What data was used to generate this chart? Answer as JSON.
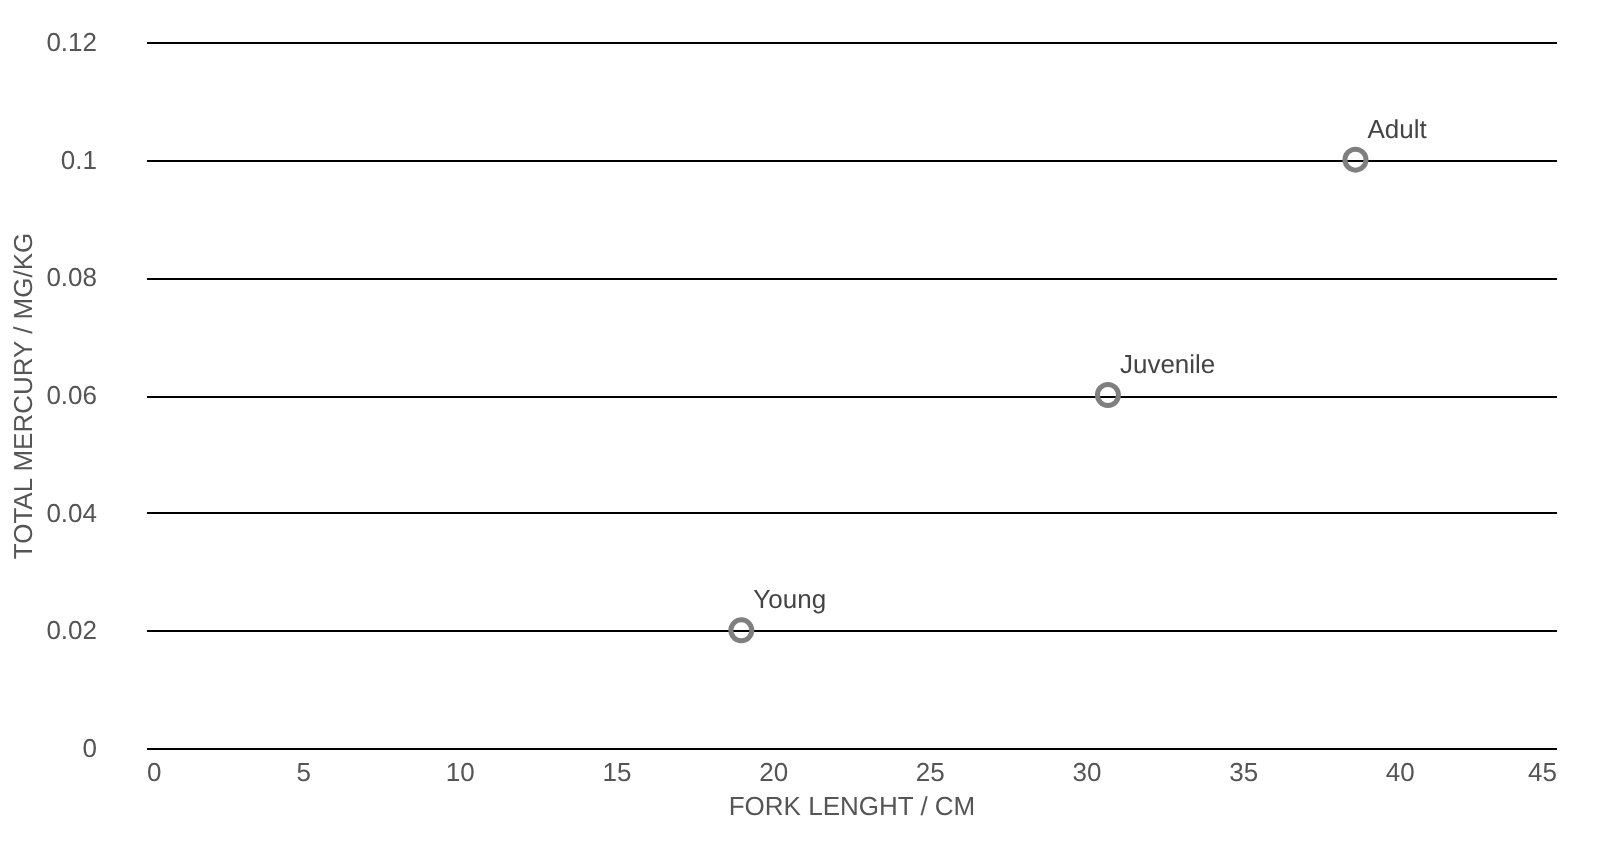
{
  "chart_data": {
    "type": "scatter",
    "xlabel": "FORK LENGHT / CM",
    "ylabel": "TOTAL MERCURY / MG/KG",
    "x": [
      19,
      30.7,
      38.6
    ],
    "series": [
      {
        "color": "#7f7f7f",
        "values": [
          0.02,
          0.06,
          0.1
        ]
      }
    ],
    "annotations": [
      {
        "text": "Young",
        "x": 19,
        "y": 0.02
      },
      {
        "text": "Juvenile",
        "x": 30.7,
        "y": 0.06
      },
      {
        "text": "Adult",
        "x": 38.6,
        "y": 0.1
      }
    ],
    "xlim": [
      0,
      45
    ],
    "xticks": [
      0,
      5,
      10,
      15,
      20,
      25,
      30,
      35,
      40,
      45
    ],
    "ylim": [
      0,
      0.12
    ],
    "yticks": [
      0,
      0.02,
      0.04,
      0.06,
      0.08,
      0.1,
      0.12
    ],
    "grid": "y",
    "marker": "circle"
  }
}
